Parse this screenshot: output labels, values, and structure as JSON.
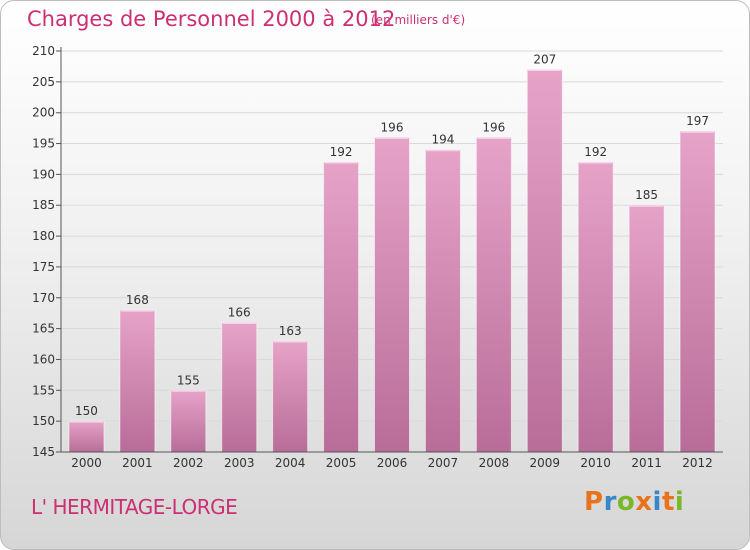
{
  "header": {
    "title": "Charges de Personnel 2000 à 2012",
    "subtitle": "(en milliers d'€)"
  },
  "footer": {
    "town": "L' HERMITAGE-LORGE",
    "logo_text": "Proxiti",
    "logo_colors": [
      "#e8731c",
      "#3a87c8",
      "#7ab829",
      "#e8731c",
      "#3a87c8",
      "#e8731c",
      "#7ab829"
    ]
  },
  "colors": {
    "title": "#cc2f72",
    "bar_light": "#e6a3c8",
    "bar_dark": "#b86d98",
    "grid": "#d9d9d9"
  },
  "chart_data": {
    "type": "bar",
    "categories": [
      "2000",
      "2001",
      "2002",
      "2003",
      "2004",
      "2005",
      "2006",
      "2007",
      "2008",
      "2009",
      "2010",
      "2011",
      "2012"
    ],
    "values": [
      150,
      168,
      155,
      166,
      163,
      192,
      196,
      194,
      196,
      207,
      192,
      185,
      197
    ],
    "data_labels": [
      "150",
      "168",
      "155",
      "166",
      "163",
      "192",
      "196",
      "194",
      "196",
      "207",
      "192",
      "185",
      "197"
    ],
    "title": "Charges de Personnel 2000 à 2012",
    "subtitle": "(en milliers d'€)",
    "xlabel": "",
    "ylabel": "",
    "ylim": [
      145,
      210
    ],
    "yticks": [
      "145",
      "150",
      "155",
      "160",
      "165",
      "170",
      "175",
      "180",
      "185",
      "190",
      "195",
      "200",
      "205",
      "210"
    ],
    "grid": true,
    "legend": "none"
  }
}
